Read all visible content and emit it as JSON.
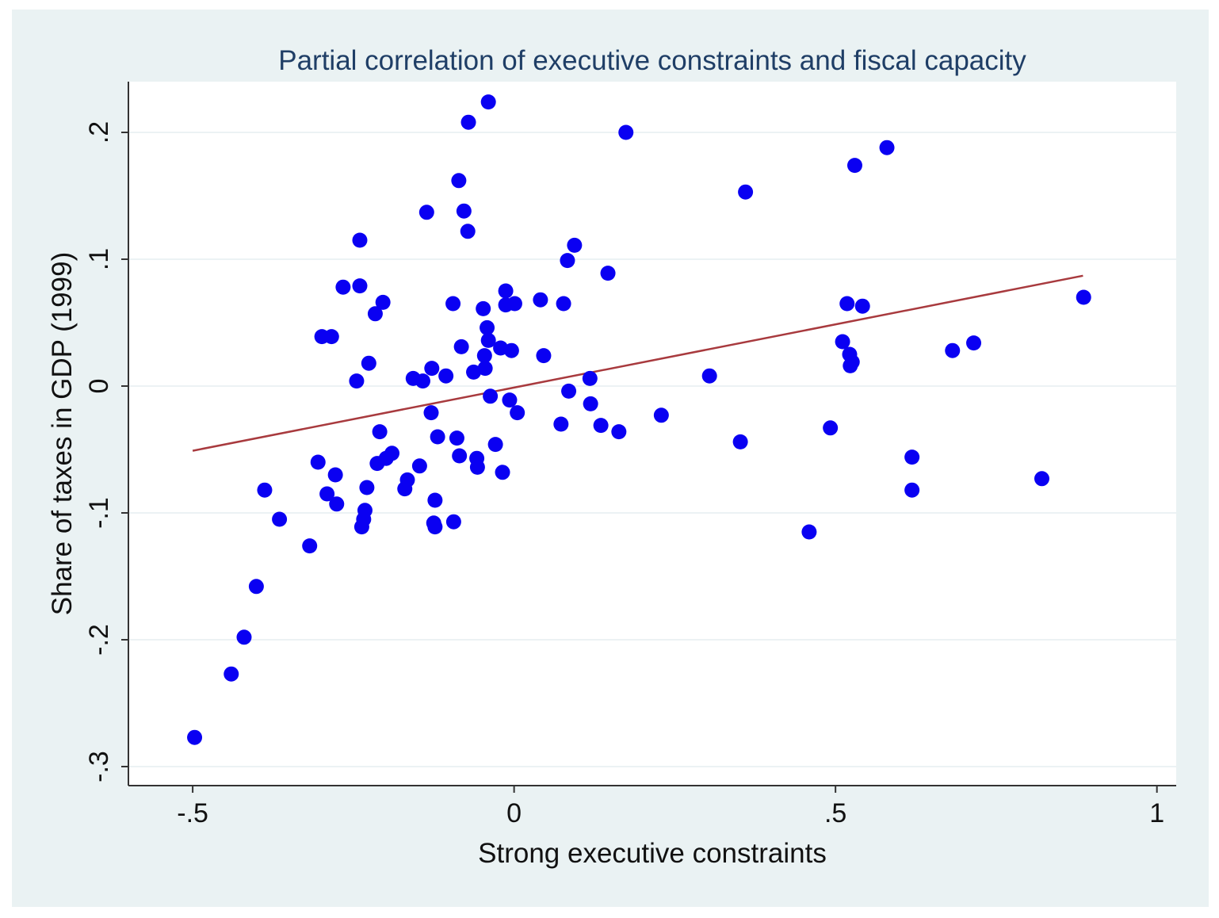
{
  "chart_data": {
    "type": "scatter",
    "title": "Partial correlation of executive constraints and fiscal capacity",
    "xlabel": "Strong executive constraints",
    "ylabel": "Share of taxes in GDP (1999)",
    "xlim": [
      -0.6,
      1.03
    ],
    "ylim": [
      -0.315,
      0.24
    ],
    "x_ticks": [
      -0.5,
      0,
      0.5,
      1
    ],
    "x_tick_labels": [
      "-.5",
      "0",
      ".5",
      "1"
    ],
    "y_ticks": [
      -0.3,
      -0.2,
      -0.1,
      0,
      0.1,
      0.2
    ],
    "y_tick_labels": [
      "-.3",
      "-.2",
      "-.1",
      "0",
      ".1",
      ".2"
    ],
    "grid": "horizontal",
    "colors": {
      "points": "#0a00f2",
      "fit_line": "#a83a3e",
      "background": "#eaf2f3",
      "plot_area": "#ffffff",
      "title": "#1f3e66"
    },
    "fit_line": {
      "x": [
        -0.5,
        0.885
      ],
      "y": [
        -0.051,
        0.087
      ]
    },
    "points": [
      [
        -0.497,
        -0.277
      ],
      [
        -0.44,
        -0.227
      ],
      [
        -0.42,
        -0.198
      ],
      [
        -0.401,
        -0.158
      ],
      [
        -0.388,
        -0.082
      ],
      [
        -0.365,
        -0.105
      ],
      [
        -0.318,
        -0.126
      ],
      [
        -0.305,
        -0.06
      ],
      [
        -0.299,
        0.039
      ],
      [
        -0.291,
        -0.085
      ],
      [
        -0.284,
        0.039
      ],
      [
        -0.278,
        -0.07
      ],
      [
        -0.276,
        -0.093
      ],
      [
        -0.266,
        0.078
      ],
      [
        -0.245,
        0.004
      ],
      [
        -0.24,
        0.115
      ],
      [
        -0.24,
        0.079
      ],
      [
        -0.237,
        -0.111
      ],
      [
        -0.234,
        -0.105
      ],
      [
        -0.232,
        -0.098
      ],
      [
        -0.229,
        -0.08
      ],
      [
        -0.226,
        0.018
      ],
      [
        -0.216,
        0.057
      ],
      [
        -0.213,
        -0.061
      ],
      [
        -0.209,
        -0.036
      ],
      [
        -0.204,
        0.066
      ],
      [
        -0.199,
        -0.057
      ],
      [
        -0.19,
        -0.053
      ],
      [
        -0.17,
        -0.081
      ],
      [
        -0.166,
        -0.074
      ],
      [
        -0.157,
        0.006
      ],
      [
        -0.147,
        -0.063
      ],
      [
        -0.142,
        0.004
      ],
      [
        -0.136,
        0.137
      ],
      [
        -0.129,
        -0.021
      ],
      [
        -0.128,
        0.014
      ],
      [
        -0.125,
        -0.108
      ],
      [
        -0.123,
        -0.111
      ],
      [
        -0.123,
        -0.09
      ],
      [
        -0.119,
        -0.04
      ],
      [
        -0.106,
        0.008
      ],
      [
        -0.095,
        0.065
      ],
      [
        -0.094,
        -0.107
      ],
      [
        -0.089,
        -0.041
      ],
      [
        -0.086,
        0.162
      ],
      [
        -0.085,
        -0.055
      ],
      [
        -0.082,
        0.031
      ],
      [
        -0.078,
        0.138
      ],
      [
        -0.072,
        0.122
      ],
      [
        -0.071,
        0.208
      ],
      [
        -0.063,
        0.011
      ],
      [
        -0.058,
        -0.057
      ],
      [
        -0.057,
        -0.064
      ],
      [
        -0.048,
        0.061
      ],
      [
        -0.046,
        0.024
      ],
      [
        -0.045,
        0.014
      ],
      [
        -0.042,
        0.046
      ],
      [
        -0.04,
        0.036
      ],
      [
        -0.04,
        0.224
      ],
      [
        -0.037,
        -0.008
      ],
      [
        -0.029,
        -0.046
      ],
      [
        -0.021,
        0.03
      ],
      [
        -0.018,
        -0.068
      ],
      [
        -0.013,
        0.075
      ],
      [
        -0.013,
        0.064
      ],
      [
        -0.007,
        -0.011
      ],
      [
        -0.004,
        0.028
      ],
      [
        0.001,
        0.065
      ],
      [
        0.005,
        -0.021
      ],
      [
        0.041,
        0.068
      ],
      [
        0.046,
        0.024
      ],
      [
        0.073,
        -0.03
      ],
      [
        0.077,
        0.065
      ],
      [
        0.083,
        0.099
      ],
      [
        0.085,
        -0.004
      ],
      [
        0.094,
        0.111
      ],
      [
        0.118,
        0.006
      ],
      [
        0.119,
        -0.014
      ],
      [
        0.135,
        -0.031
      ],
      [
        0.146,
        0.089
      ],
      [
        0.163,
        -0.036
      ],
      [
        0.174,
        0.2
      ],
      [
        0.229,
        -0.023
      ],
      [
        0.304,
        0.008
      ],
      [
        0.352,
        -0.044
      ],
      [
        0.36,
        0.153
      ],
      [
        0.459,
        -0.115
      ],
      [
        0.492,
        -0.033
      ],
      [
        0.511,
        0.035
      ],
      [
        0.518,
        0.065
      ],
      [
        0.522,
        0.025
      ],
      [
        0.523,
        0.016
      ],
      [
        0.526,
        0.019
      ],
      [
        0.53,
        0.174
      ],
      [
        0.542,
        0.063
      ],
      [
        0.58,
        0.188
      ],
      [
        0.619,
        -0.056
      ],
      [
        0.619,
        -0.082
      ],
      [
        0.682,
        0.028
      ],
      [
        0.715,
        0.034
      ],
      [
        0.821,
        -0.073
      ],
      [
        0.886,
        0.07
      ]
    ]
  }
}
